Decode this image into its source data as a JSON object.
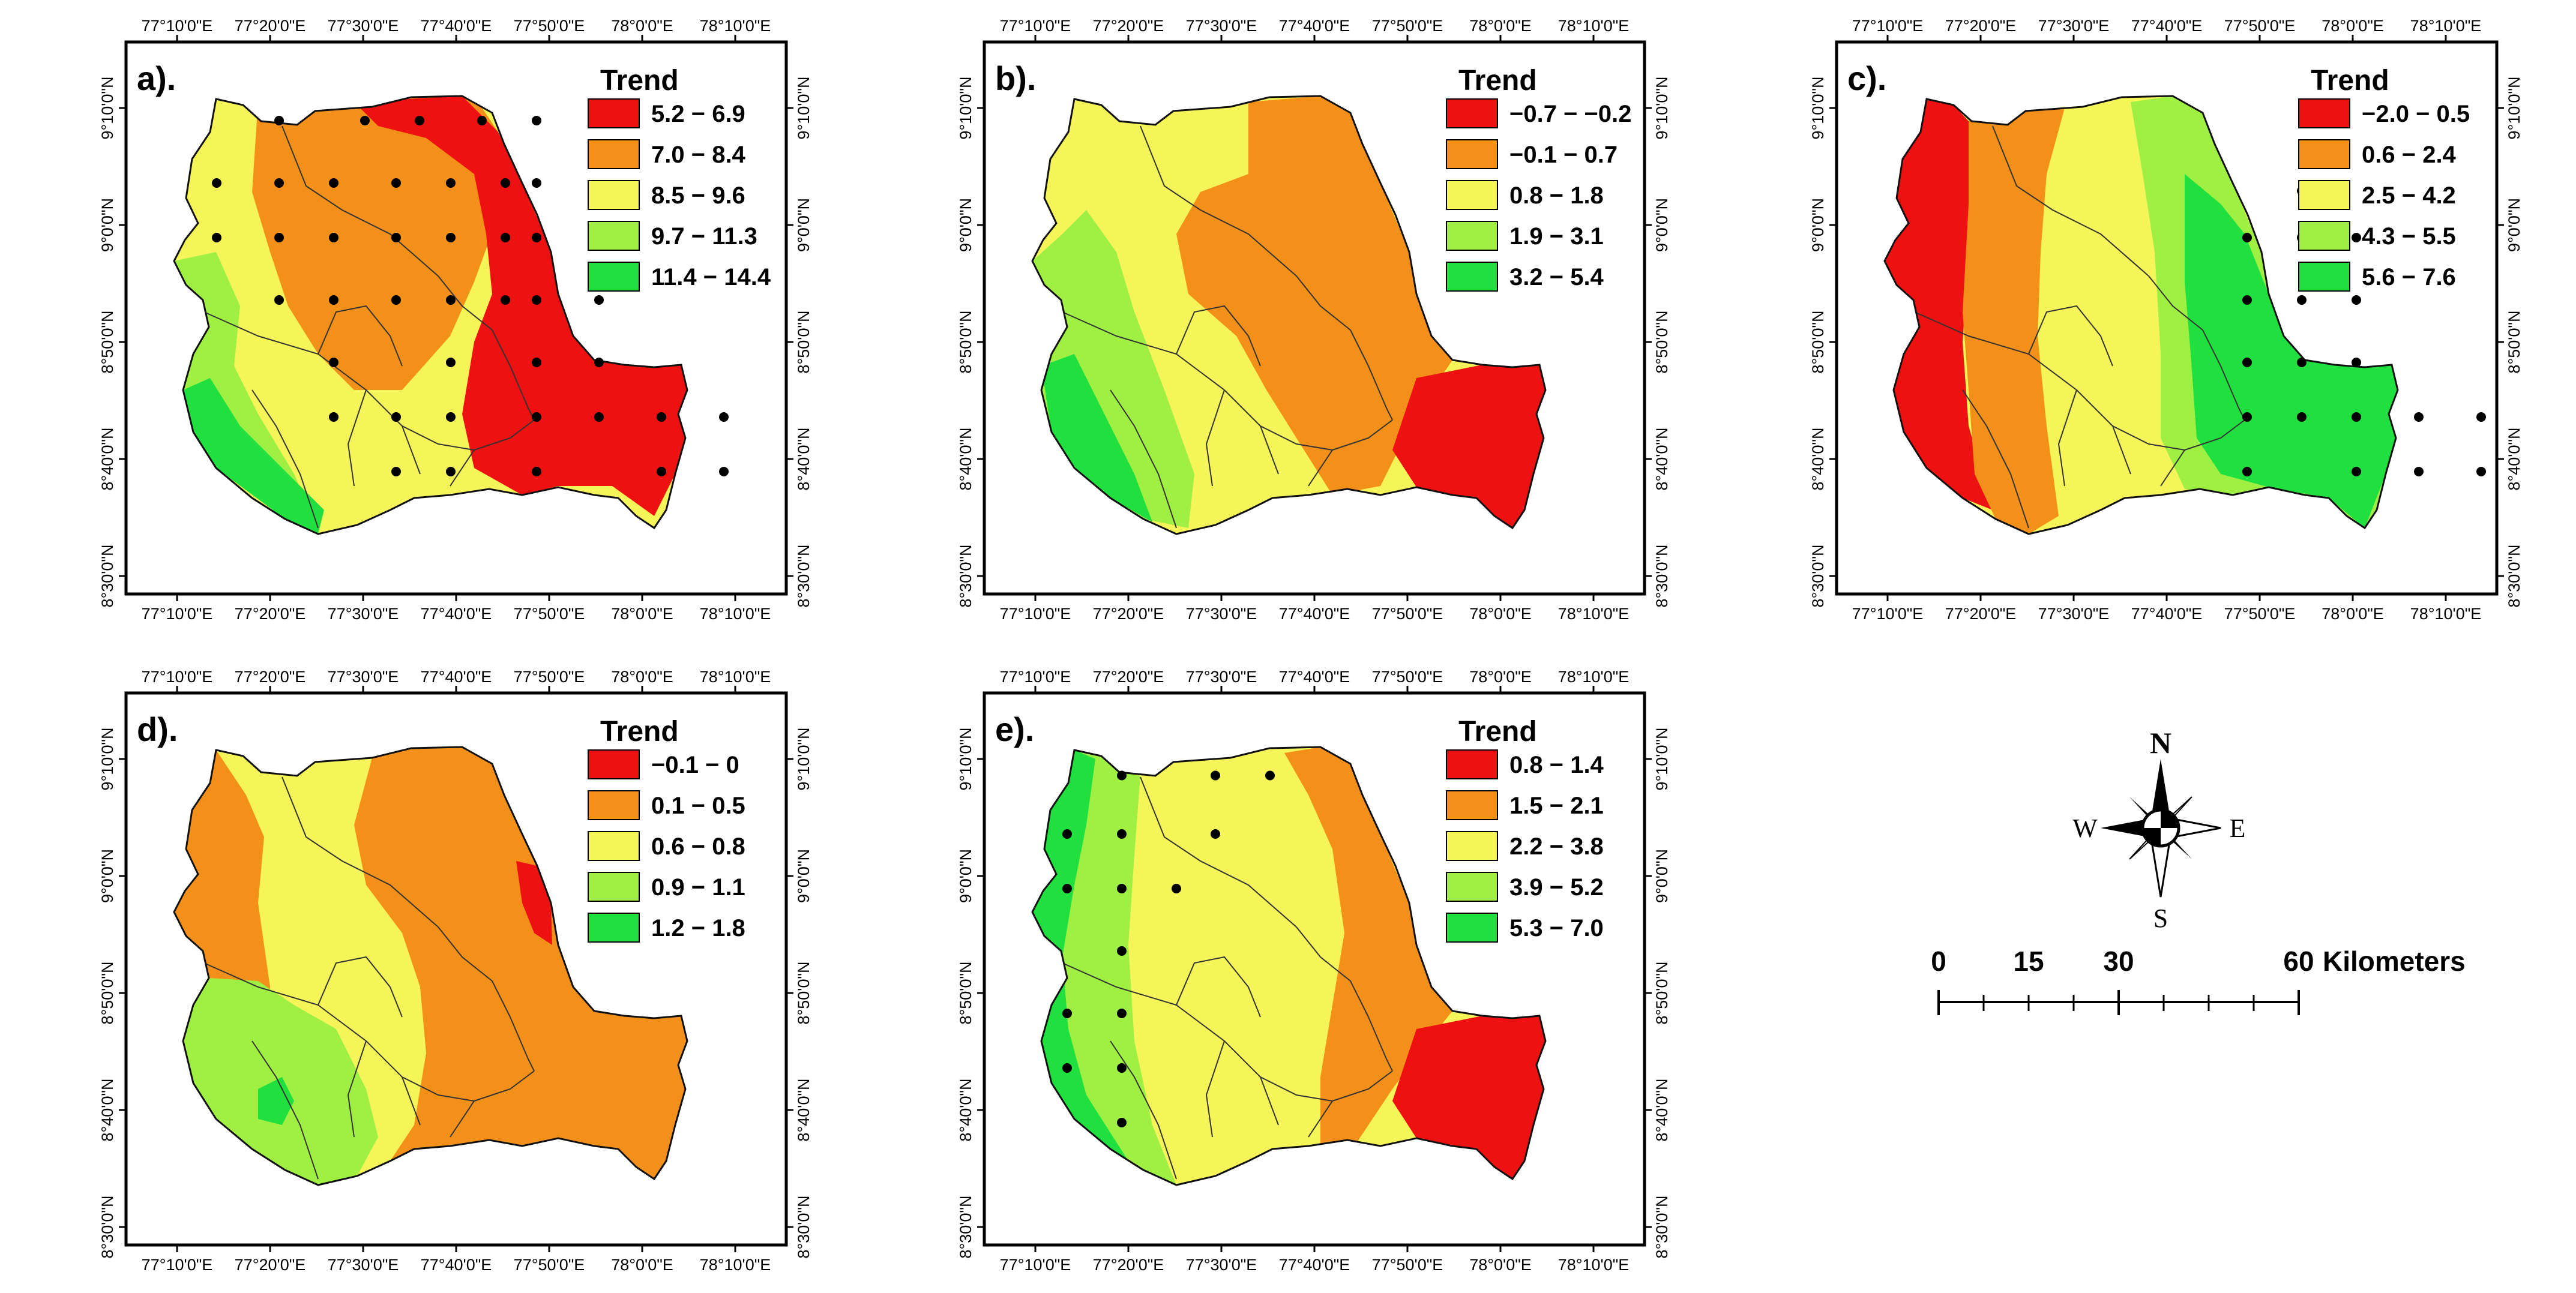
{
  "panels": [
    {
      "label": "a).",
      "legend_title": "Trend",
      "classes": [
        {
          "range": "5.2 − 6.9",
          "color": "#ee1111"
        },
        {
          "range": "7.0 − 8.4",
          "color": "#f39019"
        },
        {
          "range": "8.5 − 9.6",
          "color": "#f5f55a"
        },
        {
          "range": "9.7 − 11.3",
          "color": "#a0f044"
        },
        {
          "range": "11.4 − 14.4",
          "color": "#20e040"
        }
      ],
      "dots": true
    },
    {
      "label": "b).",
      "legend_title": "Trend",
      "classes": [
        {
          "range": "−0.7 − −0.2",
          "color": "#ee1111"
        },
        {
          "range": "−0.1 − 0.7",
          "color": "#f39019"
        },
        {
          "range": "0.8 − 1.8",
          "color": "#f5f55a"
        },
        {
          "range": "1.9 − 3.1",
          "color": "#a0f044"
        },
        {
          "range": "3.2 − 5.4",
          "color": "#20e040"
        }
      ],
      "dots": false
    },
    {
      "label": "c).",
      "legend_title": "Trend",
      "classes": [
        {
          "range": "−2.0 − 0.5",
          "color": "#ee1111"
        },
        {
          "range": "0.6 − 2.4",
          "color": "#f39019"
        },
        {
          "range": "2.5 − 4.2",
          "color": "#f5f55a"
        },
        {
          "range": "4.3 − 5.5",
          "color": "#a0f044"
        },
        {
          "range": "5.6 − 7.6",
          "color": "#20e040"
        }
      ],
      "dots": true
    },
    {
      "label": "d).",
      "legend_title": "Trend",
      "classes": [
        {
          "range": "−0.1 − 0",
          "color": "#ee1111"
        },
        {
          "range": "0.1 − 0.5",
          "color": "#f39019"
        },
        {
          "range": "0.6 − 0.8",
          "color": "#f5f55a"
        },
        {
          "range": "0.9 − 1.1",
          "color": "#a0f044"
        },
        {
          "range": "1.2 − 1.8",
          "color": "#20e040"
        }
      ],
      "dots": false
    },
    {
      "label": "e).",
      "legend_title": "Trend",
      "classes": [
        {
          "range": "0.8 − 1.4",
          "color": "#ee1111"
        },
        {
          "range": "1.5 − 2.1",
          "color": "#f39019"
        },
        {
          "range": "2.2 − 3.8",
          "color": "#f5f55a"
        },
        {
          "range": "3.9 − 5.2",
          "color": "#a0f044"
        },
        {
          "range": "5.3 − 7.0",
          "color": "#20e040"
        }
      ],
      "dots": true
    }
  ],
  "lon_ticks": [
    "77°10'0\"E",
    "77°20'0\"E",
    "77°30'0\"E",
    "77°40'0\"E",
    "77°50'0\"E",
    "78°0'0\"E",
    "78°10'0\"E"
  ],
  "lat_ticks": [
    "9°10'0\"N",
    "9°0'0\"N",
    "8°50'0\"N",
    "8°40'0\"N",
    "8°30'0\"N"
  ],
  "compass": {
    "n": "N",
    "s": "S",
    "e": "E",
    "w": "W"
  },
  "scale_bar": {
    "labels": [
      "0",
      "15",
      "30",
      "60"
    ],
    "unit": "Kilometers"
  }
}
